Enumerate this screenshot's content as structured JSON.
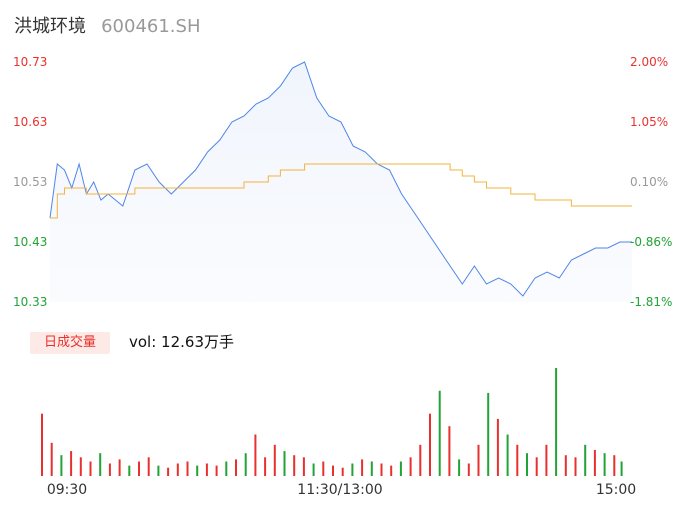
{
  "header": {
    "stock_name": "洪城环境",
    "stock_code": "600461.SH"
  },
  "volume": {
    "tab_label": "日成交量",
    "summary": "vol: 12.63万手"
  },
  "colors": {
    "price_line": "#4f86e8",
    "avg_line": "#f3b43c",
    "up": "#e8312e",
    "down": "#21a336",
    "neutral": "#999999"
  },
  "chart_data": [
    {
      "type": "line",
      "name": "intraday-price",
      "ylim": [
        10.33,
        10.73
      ],
      "y_ticks": [
        "10.73",
        "10.63",
        "10.53",
        "10.43",
        "10.33"
      ],
      "pct_ticks": [
        "2.00%",
        "1.05%",
        "0.10%",
        "-0.86%",
        "-1.81%"
      ],
      "x_ticks": [
        "09:30",
        "11:30/13:00",
        "15:00"
      ],
      "x_minutes": [
        0,
        3,
        6,
        9,
        12,
        15,
        18,
        21,
        24,
        27,
        30,
        35,
        40,
        45,
        50,
        55,
        60,
        65,
        70,
        75,
        80,
        85,
        90,
        95,
        100,
        105,
        110,
        115,
        120,
        125,
        130,
        135,
        140,
        145,
        150,
        155,
        160,
        165,
        170,
        175,
        180,
        185,
        190,
        195,
        200,
        205,
        210,
        215,
        220,
        225,
        230,
        235,
        240
      ],
      "series": [
        {
          "values": [
            10.47,
            10.56,
            10.55,
            10.52,
            10.56,
            10.51,
            10.53,
            10.5,
            10.51,
            10.5,
            10.49,
            10.55,
            10.56,
            10.53,
            10.51,
            10.53,
            10.55,
            10.58,
            10.6,
            10.63,
            10.64,
            10.66,
            10.67,
            10.69,
            10.72,
            10.73,
            10.67,
            10.64,
            10.63,
            10.59,
            10.58,
            10.56,
            10.55,
            10.51,
            10.48,
            10.45,
            10.42,
            10.39,
            10.36,
            10.39,
            10.36,
            10.37,
            10.36,
            10.34,
            10.37,
            10.38,
            10.37,
            10.4,
            10.41,
            10.42,
            10.42,
            10.43,
            10.43
          ]
        },
        {
          "values": [
            10.47,
            10.51,
            10.52,
            10.52,
            10.52,
            10.51,
            10.51,
            10.51,
            10.51,
            10.51,
            10.51,
            10.52,
            10.52,
            10.52,
            10.52,
            10.52,
            10.52,
            10.52,
            10.52,
            10.52,
            10.53,
            10.53,
            10.54,
            10.55,
            10.55,
            10.56,
            10.56,
            10.56,
            10.56,
            10.56,
            10.56,
            10.56,
            10.56,
            10.56,
            10.56,
            10.56,
            10.56,
            10.55,
            10.54,
            10.53,
            10.52,
            10.52,
            10.51,
            10.51,
            10.5,
            10.5,
            10.5,
            10.49,
            10.49,
            10.49,
            10.49,
            10.49,
            10.49
          ]
        }
      ]
    },
    {
      "type": "bar",
      "name": "intraday-volume",
      "x_minutes": [
        0,
        4,
        8,
        12,
        16,
        20,
        24,
        28,
        32,
        36,
        40,
        44,
        48,
        52,
        56,
        60,
        64,
        68,
        72,
        76,
        80,
        84,
        88,
        92,
        96,
        100,
        104,
        108,
        112,
        116,
        120,
        124,
        128,
        132,
        136,
        140,
        144,
        148,
        152,
        156,
        160,
        164,
        168,
        172,
        176,
        180,
        184,
        188,
        192,
        196,
        200,
        204,
        208,
        212,
        216,
        220,
        224,
        228,
        232,
        236,
        239
      ],
      "values": [
        60,
        32,
        20,
        24,
        18,
        14,
        22,
        12,
        16,
        10,
        14,
        18,
        10,
        8,
        12,
        14,
        10,
        12,
        10,
        14,
        16,
        22,
        40,
        18,
        30,
        24,
        20,
        18,
        12,
        14,
        10,
        8,
        12,
        16,
        14,
        12,
        10,
        14,
        18,
        30,
        60,
        82,
        48,
        16,
        12,
        30,
        80,
        55,
        40,
        30,
        22,
        18,
        30,
        104,
        20,
        18,
        30,
        25,
        22,
        20,
        14
      ],
      "directions": [
        "up",
        "up",
        "down",
        "up",
        "up",
        "up",
        "down",
        "up",
        "up",
        "down",
        "up",
        "up",
        "down",
        "up",
        "up",
        "up",
        "down",
        "up",
        "up",
        "down",
        "up",
        "down",
        "up",
        "up",
        "up",
        "down",
        "up",
        "up",
        "down",
        "up",
        "up",
        "up",
        "down",
        "up",
        "down",
        "up",
        "up",
        "down",
        "up",
        "up",
        "up",
        "down",
        "up",
        "down",
        "up",
        "up",
        "down",
        "up",
        "down",
        "up",
        "down",
        "up",
        "up",
        "down",
        "up",
        "up",
        "down",
        "up",
        "down",
        "up",
        "down"
      ]
    }
  ]
}
